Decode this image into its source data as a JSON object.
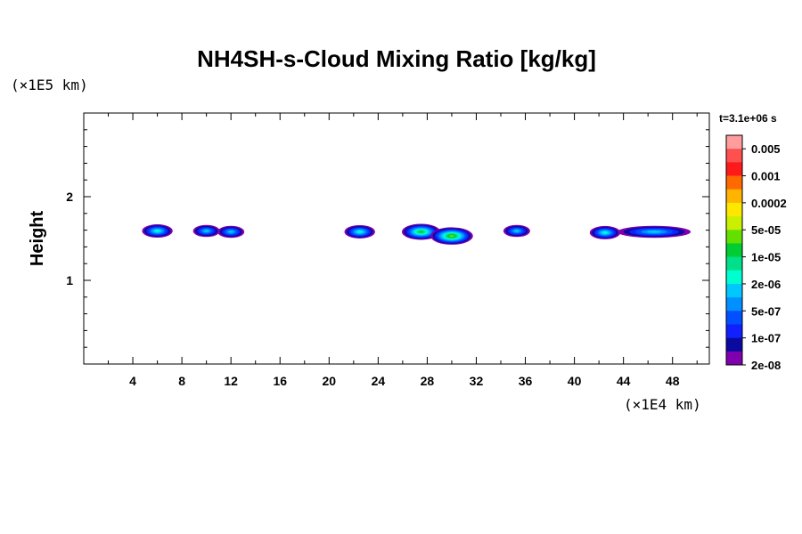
{
  "chart_data": {
    "type": "heatmap",
    "title": "NH4SH-s-Cloud Mixing Ratio [kg/kg]",
    "xlabel": "",
    "ylabel": "Height",
    "x_multiplier": "(×1E4 km)",
    "y_multiplier": "(×1E5 km)",
    "time_label": "t=3.1e+06 s",
    "xlim": [
      0,
      51
    ],
    "ylim": [
      0,
      3
    ],
    "x_ticks": [
      "4",
      "8",
      "12",
      "16",
      "20",
      "24",
      "28",
      "32",
      "36",
      "40",
      "44",
      "48"
    ],
    "y_ticks": [
      "1",
      "2"
    ],
    "colorbar": {
      "labels": [
        "0.005",
        "0.001",
        "0.0002",
        "5e-05",
        "1e-05",
        "2e-06",
        "5e-07",
        "1e-07",
        "2e-08"
      ],
      "colors": [
        "#ff9d9d",
        "#ff5050",
        "#ff1a1a",
        "#ff6a00",
        "#ffb400",
        "#ffe800",
        "#c8f000",
        "#64e000",
        "#00cc33",
        "#00e08a",
        "#00ffd0",
        "#00c8ff",
        "#0090ff",
        "#0050ff",
        "#1020ff",
        "#0a0aa0",
        "#8000b0"
      ]
    },
    "cloud_cells": [
      {
        "x": 6.0,
        "y": 1.59,
        "level": 6
      },
      {
        "x": 10.0,
        "y": 1.59,
        "level": 5
      },
      {
        "x": 12.0,
        "y": 1.58,
        "level": 5
      },
      {
        "x": 22.5,
        "y": 1.58,
        "level": 6
      },
      {
        "x": 27.5,
        "y": 1.58,
        "level": 8
      },
      {
        "x": 30.0,
        "y": 1.53,
        "level": 9
      },
      {
        "x": 35.3,
        "y": 1.59,
        "level": 5
      },
      {
        "x": 42.5,
        "y": 1.57,
        "level": 6
      },
      {
        "x": 46.5,
        "y": 1.58,
        "level": 5
      }
    ]
  }
}
